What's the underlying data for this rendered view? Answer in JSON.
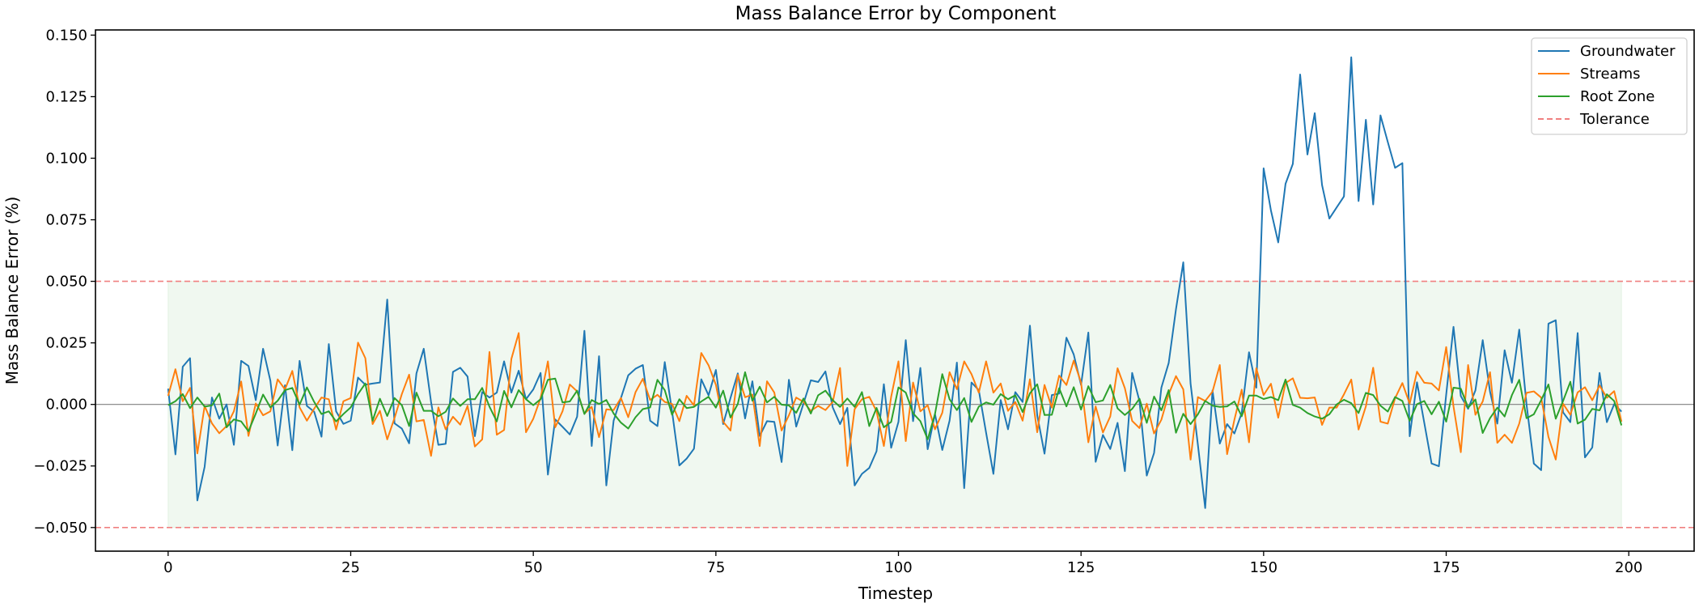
{
  "chart_data": {
    "type": "line",
    "title": "Mass Balance Error by Component",
    "xlabel": "Timestep",
    "ylabel": "Mass Balance Error (%)",
    "xlim": [
      -9.95,
      208.95
    ],
    "ylim": [
      -0.0596,
      0.1521
    ],
    "xticks": [
      0,
      25,
      50,
      75,
      100,
      125,
      150,
      175,
      200
    ],
    "xtick_labels": [
      "0",
      "25",
      "50",
      "75",
      "100",
      "125",
      "150",
      "175",
      "200"
    ],
    "yticks": [
      -0.05,
      -0.025,
      0,
      0.025,
      0.05,
      0.075,
      0.1,
      0.125,
      0.15
    ],
    "ytick_labels": [
      "−0.050",
      "−0.025",
      "0.000",
      "0.025",
      "0.050",
      "0.075",
      "0.100",
      "0.125",
      "0.150"
    ],
    "grid": false,
    "legend_position": "top-right",
    "zero_line": {
      "y": 0,
      "color": "#808080"
    },
    "tolerance": {
      "name": "Tolerance",
      "upper": 0.05,
      "lower": -0.05,
      "color": "#f08080",
      "style": "dashed"
    },
    "tolerance_band": {
      "x_start": 0,
      "x_end": 199,
      "lower": -0.05,
      "upper": 0.05,
      "color": "#2ca02c"
    },
    "x_start": 0,
    "series": [
      {
        "name": "Groundwater",
        "color": "#1f77b4",
        "values": [
          0.0064,
          -0.0203,
          0.0153,
          0.0188,
          -0.039,
          -0.0253,
          0.0028,
          -0.0058,
          0,
          -0.0164,
          0.0177,
          0.0156,
          0.0017,
          0.0226,
          0.0096,
          -0.0167,
          0.0078,
          -0.0186,
          0.0177,
          -0.0006,
          -0.003,
          -0.0131,
          0.0245,
          -0.0028,
          -0.0079,
          -0.0066,
          0.0109,
          0.008,
          0.0085,
          0.0089,
          0.0426,
          -0.0077,
          -0.0098,
          -0.0158,
          0.0126,
          0.0226,
          0.001,
          -0.0164,
          -0.016,
          0.0132,
          0.0149,
          0.0113,
          -0.0129,
          0.005,
          0.0028,
          0.0048,
          0.0175,
          0.0048,
          0.0137,
          0.0021,
          0.0061,
          0.0128,
          -0.0285,
          -0.0061,
          -0.0091,
          -0.0122,
          -0.005,
          0.0299,
          -0.0169,
          0.0196,
          -0.0329,
          -0.0066,
          0.0026,
          0.0118,
          0.0145,
          0.016,
          -0.0066,
          -0.0088,
          0.0172,
          -0.0028,
          -0.0248,
          -0.022,
          -0.018,
          0.0102,
          0.0037,
          0.014,
          -0.008,
          0.0026,
          0.0126,
          -0.0057,
          0.0094,
          -0.0128,
          -0.0068,
          -0.0071,
          -0.0234,
          0.01,
          -0.009,
          0.0004,
          0.0098,
          0.0091,
          0.0134,
          -0.0012,
          -0.008,
          -0.0014,
          -0.0329,
          -0.0282,
          -0.0258,
          -0.019,
          0.0082,
          -0.0176,
          -0.0071,
          0.0261,
          -0.0068,
          0.0148,
          -0.0182,
          -0.0039,
          -0.0185,
          -0.0066,
          0.017,
          -0.034,
          0.0089,
          0.0058,
          -0.0115,
          -0.0282,
          0.0018,
          -0.0101,
          0.005,
          0.001,
          0.032,
          -0.0044,
          -0.02,
          0.0038,
          0.0044,
          0.0271,
          0.0203,
          0.0079,
          0.0292,
          -0.0233,
          -0.0124,
          -0.0181,
          -0.0075,
          -0.0271,
          0.0128,
          0.0014,
          -0.0289,
          -0.0197,
          0.0068,
          0.0168,
          0.0387,
          0.0577,
          0.0084,
          -0.0164,
          -0.0421,
          0.0057,
          -0.0159,
          -0.008,
          -0.0118,
          -0.0035,
          0.0212,
          0.0068,
          0.0959,
          0.0788,
          0.0658,
          0.0896,
          0.0977,
          0.134,
          0.1015,
          0.1183,
          0.0891,
          0.0755,
          0.08,
          0.0845,
          0.141,
          0.0826,
          0.1156,
          0.0812,
          0.1174,
          0.1066,
          0.0961,
          0.098,
          -0.0129,
          0.009,
          -0.0075,
          -0.024,
          -0.0251,
          0.004,
          0.0315,
          0.0034,
          -0.0018,
          0.0057,
          0.0261,
          0.0052,
          -0.0078,
          0.022,
          0.0088,
          0.0304,
          0.0,
          -0.024,
          -0.0267,
          0.0328,
          0.0342,
          -0.0032,
          -0.0072,
          0.029,
          -0.0215,
          -0.0175,
          0.0128,
          -0.0072,
          0.0001,
          -0.0029
        ]
      },
      {
        "name": "Streams",
        "color": "#ff7f0e",
        "values": [
          0.0035,
          0.0143,
          0.0013,
          0.0067,
          -0.0199,
          -0.0006,
          -0.0077,
          -0.0117,
          -0.0088,
          -0.0028,
          0.0093,
          -0.0128,
          0.0004,
          -0.0044,
          -0.0028,
          0.0102,
          0.0061,
          0.0136,
          -0.0012,
          -0.0066,
          -0.0017,
          0.0028,
          0.0021,
          -0.0102,
          0.0013,
          0.0026,
          0.0251,
          0.0188,
          -0.008,
          -0.0026,
          -0.0142,
          -0.0055,
          0.0042,
          0.0121,
          -0.0069,
          -0.0063,
          -0.0209,
          -0.0012,
          -0.0101,
          -0.005,
          -0.0082,
          -0.0006,
          -0.0171,
          -0.0142,
          0.0213,
          -0.0123,
          -0.0104,
          0.0185,
          0.029,
          -0.0113,
          -0.0058,
          0.0026,
          0.0175,
          -0.0093,
          -0.0028,
          0.0081,
          0.0053,
          -0.0037,
          -0.001,
          -0.0133,
          -0.002,
          -0.0023,
          0.0026,
          -0.0052,
          0.005,
          0.0104,
          0.0018,
          0.0039,
          0.001,
          0.0002,
          -0.0068,
          0.0035,
          -0.0004,
          0.0209,
          0.0159,
          0.008,
          -0.0071,
          -0.0106,
          0.012,
          0.0029,
          0.004,
          -0.0169,
          0.0094,
          0.0048,
          -0.0106,
          -0.0044,
          0.0028,
          0.001,
          -0.0026,
          -0.0006,
          -0.0023,
          0.001,
          0.0148,
          -0.025,
          -0.0019,
          0.0021,
          0.0031,
          -0.0028,
          -0.0169,
          0.0031,
          0.0175,
          -0.0149,
          0.0089,
          -0.0028,
          -0.0003,
          -0.0101,
          -0.0034,
          0.0131,
          0.0062,
          0.0175,
          0.0123,
          0.0048,
          0.0175,
          0.0048,
          0.0085,
          -0.0026,
          0.001,
          -0.0066,
          0.0102,
          -0.0113,
          0.0079,
          -0.0013,
          0.0117,
          0.0079,
          0.0178,
          0.0089,
          -0.0154,
          -0.0008,
          -0.0114,
          -0.0049,
          0.0147,
          0.0066,
          -0.0067,
          -0.0096,
          0.0003,
          -0.0118,
          -0.0062,
          0.0041,
          0.0115,
          0.0061,
          -0.0224,
          0.003,
          0.0014,
          0.0052,
          0.016,
          -0.0202,
          -0.0062,
          0.006,
          -0.0154,
          0.0147,
          0.0038,
          0.0084,
          -0.0054,
          0.0087,
          0.0106,
          0.0027,
          0.0025,
          0.0028,
          -0.0083,
          -0.0013,
          -0.0013,
          0.0041,
          0.0101,
          -0.0102,
          -0.0008,
          0.0149,
          -0.007,
          -0.0078,
          0.0025,
          0.0087,
          0.0003,
          0.0133,
          0.0088,
          0.0085,
          0.0057,
          0.0233,
          -0.0008,
          -0.0194,
          0.016,
          -0.0042,
          0.0012,
          0.0131,
          -0.0156,
          -0.0123,
          -0.0156,
          -0.0078,
          0.0047,
          0.0053,
          0.0028,
          -0.0132,
          -0.0224,
          0.0003,
          -0.0042,
          0.0049,
          0.007,
          0.0017,
          0.0077,
          0.0027,
          0.0054,
          -0.007
        ]
      },
      {
        "name": "Root Zone",
        "color": "#2ca02c",
        "values": [
          -0.0003,
          0.0013,
          0.0042,
          -0.0015,
          0.0028,
          -0.0009,
          -0.0004,
          0.0044,
          -0.0093,
          -0.0061,
          -0.0069,
          -0.0109,
          -0.0037,
          0.004,
          -0.0012,
          0.0015,
          0.0058,
          0.0067,
          -0.0001,
          0.0069,
          0.001,
          -0.0039,
          -0.0028,
          -0.0069,
          -0.0039,
          -0.0012,
          0.0042,
          0.0085,
          -0.0066,
          0.0023,
          -0.0047,
          0.0026,
          -0.0003,
          -0.0088,
          0.0048,
          -0.0026,
          -0.0026,
          -0.0048,
          -0.003,
          0.0024,
          -0.0006,
          0.0021,
          0.0021,
          0.0067,
          -0.0009,
          -0.0069,
          0.0055,
          -0.0012,
          0.0058,
          0.0021,
          -0.0003,
          0.0021,
          0.01,
          0.0105,
          0.0008,
          0.0012,
          0.0056,
          -0.0039,
          0.0018,
          0.0002,
          0.0018,
          -0.0037,
          -0.0074,
          -0.0098,
          -0.0052,
          -0.0019,
          -0.0012,
          0.01,
          0.0058,
          -0.0042,
          0.0021,
          -0.0015,
          -0.001,
          0.0012,
          0.0031,
          -0.0013,
          0.0056,
          -0.0053,
          0.0002,
          0.0131,
          0.0015,
          0.0072,
          0.0008,
          0.0031,
          -0.0001,
          -0.0004,
          -0.0034,
          0.0024,
          -0.0037,
          0.0037,
          0.0056,
          0.0017,
          -0.001,
          0.0024,
          -0.001,
          0.005,
          -0.0088,
          -0.0014,
          -0.0093,
          -0.0071,
          0.0069,
          0.0048,
          -0.0036,
          -0.0068,
          -0.0142,
          -0.0039,
          0.0123,
          0.0021,
          -0.0023,
          0.0026,
          -0.0071,
          -0.0009,
          0.0008,
          -0.0001,
          0.0042,
          0.0021,
          0.0037,
          -0.0031,
          0.0045,
          0.0082,
          -0.0043,
          -0.0042,
          0.0066,
          -0.0008,
          0.007,
          -0.0021,
          0.0074,
          0.0009,
          0.0016,
          0.0079,
          -0.0016,
          -0.0043,
          -0.0018,
          0.0023,
          -0.0075,
          0.0032,
          -0.0024,
          0.0058,
          -0.0115,
          -0.0038,
          -0.008,
          -0.004,
          0.0014,
          -0.0005,
          -0.001,
          -0.0008,
          0.0012,
          -0.0048,
          0.0036,
          0.0036,
          0.0022,
          0.003,
          0.0017,
          0.0101,
          -0.0002,
          -0.0013,
          -0.0035,
          -0.0049,
          -0.0058,
          -0.004,
          0,
          0.0019,
          0.0005,
          -0.0035,
          0.0047,
          0.0038,
          -0.0005,
          -0.0029,
          0.003,
          0.0014,
          -0.0067,
          0.0001,
          0.0014,
          -0.004,
          0.0011,
          -0.007,
          0.0068,
          0.0064,
          -0.0013,
          0.002,
          -0.0116,
          -0.0056,
          -0.0013,
          -0.0049,
          0.0038,
          0.01,
          -0.0056,
          -0.004,
          0.0017,
          0.0081,
          -0.0058,
          0.0014,
          0.0092,
          -0.0078,
          -0.0062,
          -0.0018,
          -0.0024,
          0.0041,
          0.0014,
          -0.0085
        ]
      }
    ]
  }
}
